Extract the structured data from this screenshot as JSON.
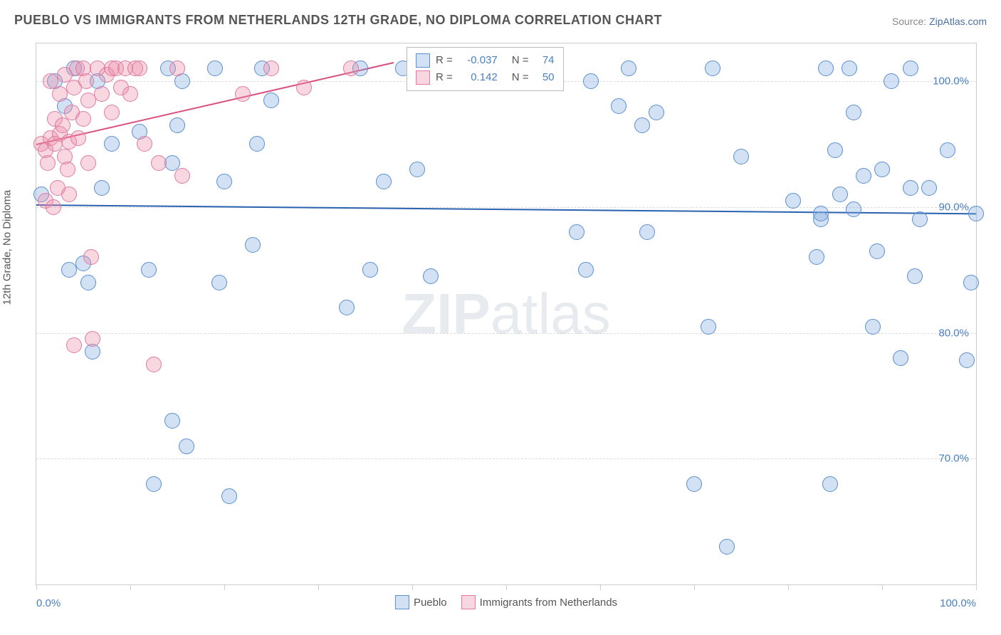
{
  "title": "PUEBLO VS IMMIGRANTS FROM NETHERLANDS 12TH GRADE, NO DIPLOMA CORRELATION CHART",
  "source_label": "Source: ",
  "source_link": "ZipAtlas.com",
  "y_axis_label": "12th Grade, No Diploma",
  "watermark_zip": "ZIP",
  "watermark_atlas": "atlas",
  "chart": {
    "type": "scatter",
    "xlim": [
      0,
      100
    ],
    "ylim": [
      60,
      103
    ],
    "y_ticks": [
      70,
      80,
      90,
      100
    ],
    "y_tick_labels": [
      "70.0%",
      "80.0%",
      "90.0%",
      "100.0%"
    ],
    "x_ticks": [
      0,
      10,
      20,
      30,
      40,
      50,
      60,
      70,
      80,
      90,
      100
    ],
    "x_min_label": "0.0%",
    "x_max_label": "100.0%",
    "grid_color": "#dddddd",
    "border_color": "#cccccc",
    "background_color": "#ffffff",
    "point_radius": 10,
    "series": [
      {
        "name": "Pueblo",
        "fill": "rgba(125, 170, 222, 0.35)",
        "stroke": "#5a8fd0",
        "line_color": "#2a62b0",
        "r_label": "R =",
        "r_value": "-0.037",
        "n_label": "N =",
        "n_value": "74",
        "trend": {
          "x1": 0,
          "y1": 90.2,
          "x2": 100,
          "y2": 89.5
        },
        "points": [
          [
            0.5,
            91.0
          ],
          [
            2.0,
            100.0
          ],
          [
            3.0,
            98.0
          ],
          [
            3.5,
            85.0
          ],
          [
            4.0,
            101.0
          ],
          [
            5.0,
            85.5
          ],
          [
            5.5,
            84.0
          ],
          [
            6.0,
            78.5
          ],
          [
            6.5,
            100.0
          ],
          [
            7.0,
            91.5
          ],
          [
            8.0,
            95.0
          ],
          [
            11.0,
            96.0
          ],
          [
            12.0,
            85.0
          ],
          [
            12.5,
            68.0
          ],
          [
            14.0,
            101.0
          ],
          [
            14.5,
            93.5
          ],
          [
            14.5,
            73.0
          ],
          [
            15.0,
            96.5
          ],
          [
            15.5,
            100.0
          ],
          [
            16.0,
            71.0
          ],
          [
            19.0,
            101.0
          ],
          [
            19.5,
            84.0
          ],
          [
            20.0,
            92.0
          ],
          [
            20.5,
            67.0
          ],
          [
            23.0,
            87.0
          ],
          [
            23.5,
            95.0
          ],
          [
            24.0,
            101.0
          ],
          [
            25.0,
            98.5
          ],
          [
            33.0,
            82.0
          ],
          [
            34.5,
            101.0
          ],
          [
            35.5,
            85.0
          ],
          [
            37.0,
            92.0
          ],
          [
            39.0,
            101.0
          ],
          [
            40.5,
            93.0
          ],
          [
            42.0,
            84.5
          ],
          [
            57.5,
            88.0
          ],
          [
            58.5,
            85.0
          ],
          [
            59.0,
            100.0
          ],
          [
            62.0,
            98.0
          ],
          [
            63.0,
            101.0
          ],
          [
            64.5,
            96.5
          ],
          [
            65.0,
            88.0
          ],
          [
            66.0,
            97.5
          ],
          [
            70.0,
            68.0
          ],
          [
            71.5,
            80.5
          ],
          [
            72.0,
            101.0
          ],
          [
            73.5,
            63.0
          ],
          [
            75.0,
            94.0
          ],
          [
            80.5,
            90.5
          ],
          [
            83.0,
            86.0
          ],
          [
            83.5,
            89.0
          ],
          [
            83.5,
            89.5
          ],
          [
            84.0,
            101.0
          ],
          [
            84.5,
            68.0
          ],
          [
            85.0,
            94.5
          ],
          [
            85.5,
            91.0
          ],
          [
            86.5,
            101.0
          ],
          [
            87.0,
            97.5
          ],
          [
            87.0,
            89.8
          ],
          [
            88.0,
            92.5
          ],
          [
            89.0,
            80.5
          ],
          [
            89.5,
            86.5
          ],
          [
            90.0,
            93.0
          ],
          [
            91.0,
            100.0
          ],
          [
            92.0,
            78.0
          ],
          [
            93.0,
            91.5
          ],
          [
            93.0,
            101.0
          ],
          [
            93.5,
            84.5
          ],
          [
            94.0,
            89.0
          ],
          [
            95.0,
            91.5
          ],
          [
            97.0,
            94.5
          ],
          [
            99.0,
            77.8
          ],
          [
            99.5,
            84.0
          ],
          [
            100.0,
            89.5
          ]
        ]
      },
      {
        "name": "Immigrants from Netherlands",
        "fill": "rgba(235, 140, 170, 0.35)",
        "stroke": "#e07aa0",
        "line_color": "#d94f80",
        "r_label": "R =",
        "r_value": "0.142",
        "n_label": "N =",
        "n_value": "50",
        "trend": {
          "x1": 0,
          "y1": 95.0,
          "x2": 38,
          "y2": 101.5
        },
        "points": [
          [
            0.5,
            95.0
          ],
          [
            1.0,
            94.5
          ],
          [
            1.0,
            90.5
          ],
          [
            1.2,
            93.5
          ],
          [
            1.5,
            100.0
          ],
          [
            1.5,
            95.5
          ],
          [
            1.8,
            90.0
          ],
          [
            2.0,
            95.0
          ],
          [
            2.0,
            97.0
          ],
          [
            2.3,
            91.5
          ],
          [
            2.5,
            99.0
          ],
          [
            2.5,
            95.8
          ],
          [
            2.8,
            96.5
          ],
          [
            3.0,
            100.5
          ],
          [
            3.0,
            94.0
          ],
          [
            3.3,
            93.0
          ],
          [
            3.5,
            91.0
          ],
          [
            3.5,
            95.2
          ],
          [
            3.8,
            97.5
          ],
          [
            4.0,
            79.0
          ],
          [
            4.0,
            99.5
          ],
          [
            4.3,
            101.0
          ],
          [
            4.5,
            95.5
          ],
          [
            5.0,
            101.0
          ],
          [
            5.0,
            97.0
          ],
          [
            5.3,
            100.0
          ],
          [
            5.5,
            98.5
          ],
          [
            5.5,
            93.5
          ],
          [
            5.8,
            86.0
          ],
          [
            6.0,
            79.5
          ],
          [
            6.5,
            101.0
          ],
          [
            7.0,
            99.0
          ],
          [
            7.5,
            100.5
          ],
          [
            8.0,
            101.0
          ],
          [
            8.0,
            97.5
          ],
          [
            8.5,
            101.0
          ],
          [
            9.0,
            99.5
          ],
          [
            9.5,
            101.0
          ],
          [
            10.0,
            99.0
          ],
          [
            10.5,
            101.0
          ],
          [
            11.0,
            101.0
          ],
          [
            11.5,
            95.0
          ],
          [
            12.5,
            77.5
          ],
          [
            13.0,
            93.5
          ],
          [
            15.0,
            101.0
          ],
          [
            15.5,
            92.5
          ],
          [
            22.0,
            99.0
          ],
          [
            25.0,
            101.0
          ],
          [
            28.5,
            99.5
          ],
          [
            33.5,
            101.0
          ]
        ]
      }
    ]
  },
  "legend_bottom": [
    {
      "swatch_fill": "rgba(125,170,222,0.35)",
      "swatch_stroke": "#5a8fd0",
      "label": "Pueblo"
    },
    {
      "swatch_fill": "rgba(235,140,170,0.35)",
      "swatch_stroke": "#e07aa0",
      "label": "Immigrants from Netherlands"
    }
  ]
}
